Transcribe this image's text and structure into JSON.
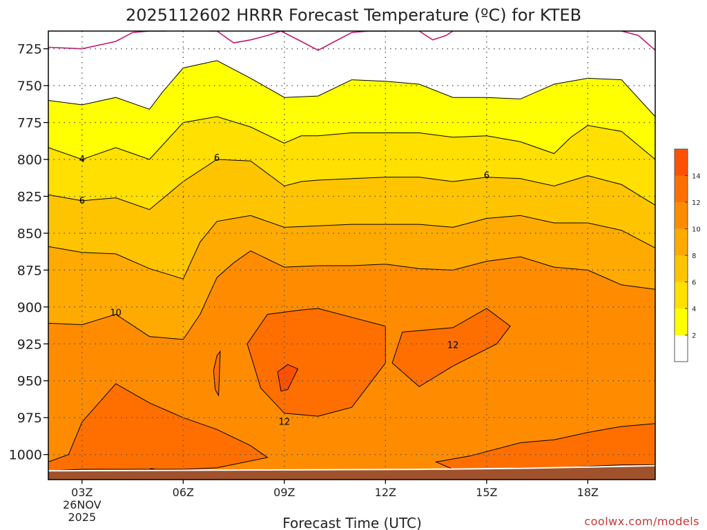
{
  "title": "2025112602 HRRR Forecast Temperature (ºC) for KTEB",
  "credit": "coolwx.com/models",
  "chart_data": {
    "type": "heatmap",
    "title": "2025112602 HRRR Forecast Temperature (ºC) for KTEB",
    "xlabel": "Forecast Time (UTC)",
    "ylabel": "",
    "x_range_hours_utc": [
      2,
      20
    ],
    "y_range_hpa": [
      713,
      1017
    ],
    "y_scale": "reversed",
    "grid": true,
    "x_ticks": [
      {
        "hour": 3,
        "label": "03Z",
        "sub1": "26NOV",
        "sub2": "2025"
      },
      {
        "hour": 6,
        "label": "06Z"
      },
      {
        "hour": 9,
        "label": "09Z"
      },
      {
        "hour": 12,
        "label": "12Z"
      },
      {
        "hour": 15,
        "label": "15Z"
      },
      {
        "hour": 18,
        "label": "18Z"
      }
    ],
    "y_ticks": [
      725,
      750,
      775,
      800,
      825,
      850,
      875,
      900,
      925,
      950,
      975,
      1000
    ],
    "surface_pressure_hpa": {
      "x": [
        2,
        7,
        10,
        13,
        16,
        19,
        20
      ],
      "y": [
        1011.5,
        1011,
        1010.8,
        1010.5,
        1009.8,
        1008.5,
        1008
      ]
    },
    "surface_color": "#a0522d",
    "colorbar": {
      "levels": [
        2,
        4,
        6,
        8,
        10,
        12,
        14
      ],
      "bands": [
        {
          "from": 0,
          "to": 2,
          "color": "#ffffff"
        },
        {
          "from": 2,
          "to": 4,
          "color": "#ffff00"
        },
        {
          "from": 4,
          "to": 6,
          "color": "#ffe000"
        },
        {
          "from": 6,
          "to": 8,
          "color": "#ffc400"
        },
        {
          "from": 8,
          "to": 10,
          "color": "#ffaa00"
        },
        {
          "from": 10,
          "to": 12,
          "color": "#ff8c00"
        },
        {
          "from": 12,
          "to": 14,
          "color": "#ff6f00"
        },
        {
          "from": 14,
          "to": 16,
          "color": "#ff5000"
        }
      ]
    },
    "contours": [
      {
        "level": 2,
        "color": "#ffff00",
        "x": [
          2,
          3,
          4,
          5,
          5.4,
          6,
          7,
          8,
          9,
          10,
          11,
          12,
          13,
          14,
          15,
          16,
          17,
          18,
          19,
          20
        ],
        "y": [
          760,
          763,
          758,
          766,
          754,
          738,
          733,
          745,
          758,
          757,
          746,
          747,
          749,
          758,
          758,
          759,
          749,
          745,
          746,
          771
        ]
      },
      {
        "level": 4,
        "color": "#ffe000",
        "x": [
          2,
          3,
          4,
          5,
          6,
          7,
          8,
          9,
          9.5,
          10,
          11,
          12,
          13,
          14,
          15,
          16,
          17,
          17.5,
          18,
          19,
          20
        ],
        "y": [
          792,
          800,
          792,
          800,
          775,
          771,
          778,
          789,
          784,
          784,
          782,
          782,
          782,
          785,
          784,
          788,
          796,
          785,
          777,
          781,
          800
        ]
      },
      {
        "level": 6,
        "color": "#ffc400",
        "x": [
          2,
          3,
          4,
          5,
          6,
          7,
          8,
          9,
          9.5,
          10,
          11,
          12,
          13,
          14,
          15,
          16,
          17,
          18,
          19,
          20
        ],
        "y": [
          824,
          828,
          826,
          834,
          815,
          800,
          801,
          818,
          815,
          814,
          813,
          812,
          812,
          815,
          812,
          813,
          818,
          811,
          817,
          831
        ]
      },
      {
        "level": 8,
        "color": "#ffaa00",
        "x": [
          2,
          3,
          4,
          5,
          6,
          6.5,
          7,
          7.5,
          8,
          9,
          10,
          11,
          12,
          13,
          14,
          15,
          16,
          17,
          18,
          19,
          20
        ],
        "y": [
          859,
          863,
          864,
          874,
          881,
          856,
          842,
          840,
          838,
          846,
          845,
          844,
          844,
          844,
          846,
          840,
          838,
          843,
          843,
          848,
          860
        ]
      },
      {
        "level": 10,
        "color": "#ff8c00",
        "x": [
          2,
          3,
          4,
          5,
          6,
          6.5,
          7,
          7.5,
          8,
          9,
          10,
          11,
          12,
          13,
          14,
          15,
          16,
          17,
          18,
          19,
          20
        ],
        "y": [
          911,
          912,
          905,
          920,
          922,
          905,
          880,
          870,
          862,
          873,
          872,
          872,
          871,
          874,
          875,
          869,
          866,
          873,
          875,
          885,
          888
        ]
      }
    ],
    "regions_12": [
      {
        "x": [
          7.9,
          8.5,
          9.5,
          10,
          11,
          12,
          12,
          11,
          10,
          9,
          8.3,
          7.9
        ],
        "y": [
          925,
          905,
          902,
          901,
          907,
          913,
          938,
          968,
          974,
          972,
          955,
          925
        ]
      },
      {
        "x": [
          12.2,
          12.5,
          14,
          15,
          15.7,
          15.3,
          14,
          13,
          12.2
        ],
        "y": [
          938,
          917,
          914,
          901,
          913,
          925,
          940,
          954,
          938
        ]
      },
      {
        "x": [
          6.9,
          7.0,
          7.1,
          7.05,
          6.95,
          6.9
        ],
        "y": [
          943,
          933,
          930,
          960,
          956,
          943
        ]
      },
      {
        "x": [
          2,
          2.6,
          3,
          4,
          5,
          6,
          7,
          8,
          8.5,
          7,
          6,
          5,
          4,
          3,
          2
        ],
        "y": [
          1005,
          1000,
          978,
          952,
          965,
          975,
          983,
          994,
          1002,
          1009,
          1010,
          1010,
          1010,
          1010,
          1011
        ]
      },
      {
        "x": [
          13.5,
          14.5,
          16,
          17,
          18,
          19,
          20,
          20,
          19,
          18,
          17,
          16,
          15,
          14,
          13.5
        ],
        "y": [
          1005,
          1001,
          992,
          990,
          985,
          981,
          979,
          1007,
          1007,
          1008,
          1009,
          1009,
          1010,
          1010,
          1005
        ]
      }
    ],
    "regions_14": [
      {
        "x": [
          8.8,
          9.1,
          9.4,
          9.1,
          8.9,
          8.8
        ],
        "y": [
          944,
          939,
          942,
          956,
          957,
          944
        ]
      },
      {
        "x": [
          5.05,
          5.15,
          5.0,
          5.05
        ],
        "y": [
          1009.5,
          1009.8,
          1009.8,
          1009.5
        ]
      }
    ],
    "cold_contour": [
      {
        "x": [
          2,
          3,
          4,
          4.5,
          5,
          5.5
        ],
        "y": [
          724,
          725,
          720,
          714,
          713,
          713
        ]
      },
      {
        "x": [
          6.8,
          7,
          7.5,
          8,
          8.5,
          8.9
        ],
        "y": [
          713,
          713,
          721,
          719,
          716,
          713
        ]
      },
      {
        "x": [
          8.9,
          9.5,
          10,
          10.5,
          11,
          11.5,
          12
        ],
        "y": [
          713,
          720,
          726,
          720,
          714,
          713,
          713
        ]
      },
      {
        "x": [
          13,
          13.4,
          13.8,
          14
        ],
        "y": [
          713,
          719,
          716,
          713
        ]
      },
      {
        "x": [
          19,
          19.5,
          20
        ],
        "y": [
          713,
          716,
          726
        ]
      }
    ],
    "contour_labels": [
      {
        "text": "4",
        "x": 3,
        "y": 800
      },
      {
        "text": "6",
        "x": 3,
        "y": 828
      },
      {
        "text": "6",
        "x": 7,
        "y": 799
      },
      {
        "text": "6",
        "x": 15,
        "y": 811
      },
      {
        "text": "10",
        "x": 4,
        "y": 904
      },
      {
        "text": "12",
        "x": 14,
        "y": 926
      },
      {
        "text": "12",
        "x": 9,
        "y": 978
      }
    ]
  }
}
